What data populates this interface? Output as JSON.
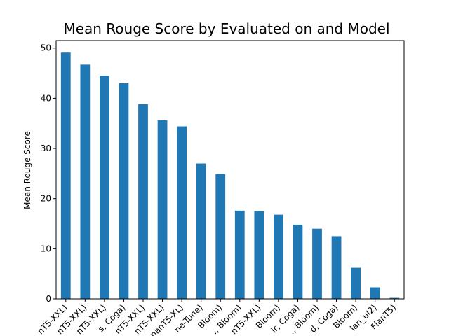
{
  "chart_data": {
    "type": "bar",
    "title": "Mean Rouge Score by Evaluated on and Model",
    "xlabel": "",
    "ylabel": "Mean Rouge Score",
    "ylim": [
      0,
      51.5
    ],
    "yticks": [
      0,
      10,
      20,
      30,
      40,
      50
    ],
    "grid": false,
    "bar_color": "#1f77b4",
    "categories": [
      "nT5-XXL)",
      "nT5-XXL)",
      "nT5-XXL)",
      "s, Coga)",
      "nT5-XXL)",
      "nT5-XXL)",
      "nanT5-XL)",
      "ne-Tune)",
      "Bloom)",
      "., Bloom)",
      "nT5-XXL)",
      "Bloom)",
      "ir, Coga)",
      "., Bloom)",
      "d, Coga)",
      "Bloom)",
      "lan_ul2)",
      "FlanT5)"
    ],
    "values": [
      49.1,
      46.7,
      44.5,
      43.0,
      38.8,
      35.6,
      34.4,
      27.0,
      24.9,
      17.6,
      17.5,
      16.8,
      14.8,
      14.0,
      12.5,
      6.2,
      2.3,
      0.2
    ]
  }
}
